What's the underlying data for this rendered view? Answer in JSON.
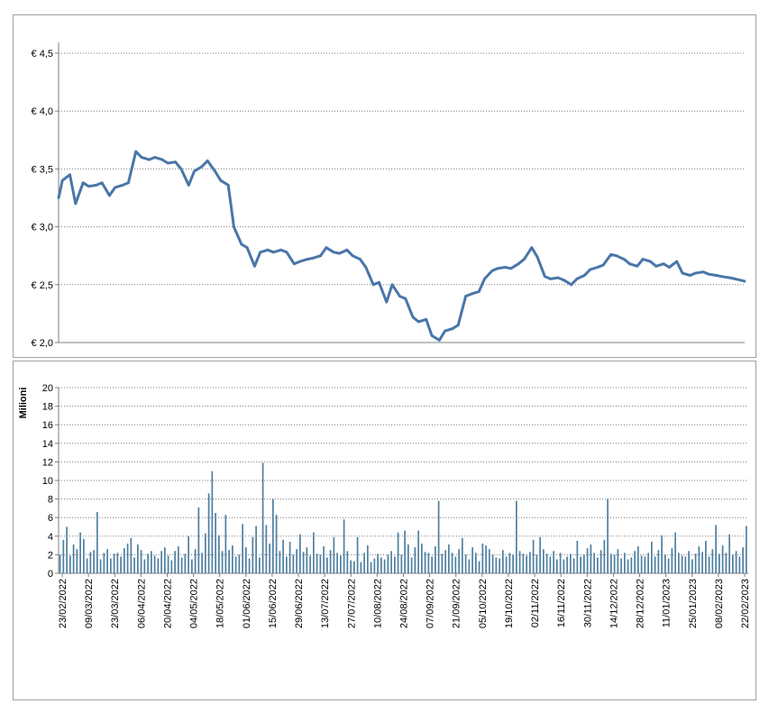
{
  "colors": {
    "line": "#4a76a8",
    "bar": "#4e7fa0",
    "grid": "#7f7f7f",
    "axis": "#7f7f7f"
  },
  "chart_data": [
    {
      "type": "line",
      "title": "",
      "ylim": [
        2.0,
        4.5
      ],
      "yticks": [
        2.0,
        2.5,
        3.0,
        3.5,
        4.0,
        4.5
      ],
      "ytick_labels": [
        "€ 2,0",
        "€ 2,5",
        "€ 3,0",
        "€ 3,5",
        "€ 4,0",
        "€ 4,5"
      ],
      "grid": true,
      "x_start": "2022-02-23",
      "x_end": "2023-02-22",
      "series": [
        {
          "x": [
            "2022-02-23",
            "2022-02-25",
            "2022-03-01",
            "2022-03-04",
            "2022-03-08",
            "2022-03-11",
            "2022-03-15",
            "2022-03-18",
            "2022-03-22",
            "2022-03-25",
            "2022-03-29",
            "2022-04-01",
            "2022-04-05",
            "2022-04-08",
            "2022-04-12",
            "2022-04-15",
            "2022-04-19",
            "2022-04-22",
            "2022-04-26",
            "2022-04-29",
            "2022-05-03",
            "2022-05-06",
            "2022-05-10",
            "2022-05-13",
            "2022-05-17",
            "2022-05-20",
            "2022-05-24",
            "2022-05-27",
            "2022-05-31",
            "2022-06-03",
            "2022-06-07",
            "2022-06-10",
            "2022-06-14",
            "2022-06-17",
            "2022-06-21",
            "2022-06-24",
            "2022-06-28",
            "2022-07-01",
            "2022-07-05",
            "2022-07-08",
            "2022-07-12",
            "2022-07-15",
            "2022-07-19",
            "2022-07-22",
            "2022-07-26",
            "2022-07-29",
            "2022-08-02",
            "2022-08-05",
            "2022-08-09",
            "2022-08-12",
            "2022-08-16",
            "2022-08-19",
            "2022-08-23",
            "2022-08-26",
            "2022-08-30",
            "2022-09-02",
            "2022-09-06",
            "2022-09-09",
            "2022-09-13",
            "2022-09-16",
            "2022-09-20",
            "2022-09-23",
            "2022-09-27",
            "2022-09-30",
            "2022-10-04",
            "2022-10-07",
            "2022-10-11",
            "2022-10-14",
            "2022-10-18",
            "2022-10-21",
            "2022-10-25",
            "2022-10-28",
            "2022-11-01",
            "2022-11-04",
            "2022-11-08",
            "2022-11-11",
            "2022-11-15",
            "2022-11-18",
            "2022-11-22",
            "2022-11-25",
            "2022-11-29",
            "2022-12-02",
            "2022-12-06",
            "2022-12-09",
            "2022-12-13",
            "2022-12-16",
            "2022-12-20",
            "2022-12-23",
            "2022-12-27",
            "2022-12-30",
            "2023-01-03",
            "2023-01-06",
            "2023-01-10",
            "2023-01-13",
            "2023-01-17",
            "2023-01-20",
            "2023-01-24",
            "2023-01-27",
            "2023-01-31",
            "2023-02-03",
            "2023-02-07",
            "2023-02-10",
            "2023-02-14",
            "2023-02-17",
            "2023-02-22"
          ],
          "y": [
            3.25,
            3.4,
            3.45,
            3.2,
            3.38,
            3.35,
            3.36,
            3.38,
            3.27,
            3.34,
            3.36,
            3.38,
            3.65,
            3.6,
            3.58,
            3.6,
            3.58,
            3.55,
            3.56,
            3.5,
            3.36,
            3.48,
            3.52,
            3.57,
            3.48,
            3.4,
            3.36,
            3.0,
            2.85,
            2.82,
            2.66,
            2.78,
            2.8,
            2.78,
            2.8,
            2.78,
            2.68,
            2.7,
            2.72,
            2.73,
            2.75,
            2.82,
            2.78,
            2.77,
            2.8,
            2.75,
            2.72,
            2.65,
            2.5,
            2.52,
            2.35,
            2.5,
            2.4,
            2.38,
            2.22,
            2.18,
            2.2,
            2.06,
            2.02,
            2.1,
            2.12,
            2.15,
            2.4,
            2.42,
            2.44,
            2.55,
            2.62,
            2.64,
            2.65,
            2.64,
            2.68,
            2.72,
            2.82,
            2.74,
            2.57,
            2.55,
            2.56,
            2.54,
            2.5,
            2.55,
            2.58,
            2.63,
            2.65,
            2.67,
            2.76,
            2.75,
            2.72,
            2.68,
            2.66,
            2.72,
            2.7,
            2.66,
            2.68,
            2.65,
            2.7,
            2.6,
            2.58,
            2.6,
            2.61,
            2.59,
            2.58,
            2.57,
            2.56,
            2.55,
            2.53
          ]
        }
      ]
    },
    {
      "type": "bar",
      "title": "",
      "ylabel": "Milioni",
      "ylim": [
        0,
        20
      ],
      "yticks": [
        0,
        2,
        4,
        6,
        8,
        10,
        12,
        14,
        16,
        18,
        20
      ],
      "grid": true,
      "x_start": "2022-02-23",
      "x_end": "2023-02-22",
      "xtick_labels": [
        "23/02/2022",
        "09/03/2022",
        "23/03/2022",
        "06/04/2022",
        "20/04/2022",
        "04/05/2022",
        "18/05/2022",
        "01/06/2022",
        "15/06/2022",
        "29/06/2022",
        "13/07/2022",
        "27/07/2022",
        "10/08/2022",
        "24/08/2022",
        "07/09/2022",
        "21/09/2022",
        "05/10/2022",
        "19/10/2022",
        "02/11/2022",
        "16/11/2022",
        "30/11/2022",
        "14/12/2022",
        "28/12/2022",
        "11/01/2023",
        "25/01/2023",
        "08/02/2023",
        "22/02/2023"
      ],
      "series": [
        {
          "values": [
            2.0,
            3.6,
            5.0,
            1.9,
            3.1,
            2.6,
            4.4,
            3.7,
            1.6,
            2.3,
            2.5,
            6.6,
            1.5,
            2.2,
            2.6,
            1.6,
            2.1,
            2.2,
            1.8,
            2.7,
            3.2,
            3.8,
            1.7,
            3.1,
            2.5,
            1.5,
            2.1,
            2.4,
            1.9,
            1.6,
            2.4,
            2.8,
            1.9,
            1.4,
            2.4,
            2.9,
            1.7,
            2.1,
            4.0,
            1.5,
            2.6,
            7.1,
            2.2,
            4.3,
            8.6,
            11.0,
            6.5,
            4.1,
            2.4,
            6.3,
            2.5,
            3.0,
            1.8,
            2.0,
            5.3,
            2.8,
            1.6,
            3.9,
            5.1,
            1.7,
            11.9,
            5.2,
            3.2,
            8.0,
            6.3,
            2.4,
            3.6,
            1.8,
            3.4,
            2.0,
            2.6,
            4.2,
            2.3,
            2.8,
            1.9,
            4.4,
            2.1,
            2.0,
            2.9,
            1.7,
            2.5,
            3.9,
            2.2,
            1.9,
            5.8,
            2.4,
            1.4,
            1.3,
            3.9,
            1.2,
            2.2,
            3.0,
            1.2,
            1.6,
            2.1,
            1.7,
            1.5,
            2.0,
            2.4,
            1.8,
            4.4,
            2.0,
            4.6,
            3.1,
            1.7,
            2.8,
            4.6,
            3.2,
            2.3,
            2.2,
            1.8,
            2.9,
            7.8,
            2.1,
            2.5,
            3.1,
            2.2,
            1.8,
            2.6,
            3.8,
            2.0,
            1.5,
            2.8,
            2.2,
            1.3,
            3.2,
            3.0,
            2.6,
            2.0,
            1.7,
            1.6,
            2.5,
            1.8,
            2.2,
            2.0,
            7.8,
            2.4,
            2.1,
            1.9,
            2.3,
            3.6,
            2.0,
            3.9,
            2.6,
            2.1,
            1.8,
            2.4,
            1.5,
            2.2,
            1.5,
            1.8,
            2.1,
            1.6,
            3.5,
            1.8,
            2.0,
            2.7,
            3.1,
            2.2,
            1.7,
            2.5,
            3.6,
            8.0,
            2.1,
            2.0,
            2.6,
            1.6,
            2.2,
            1.5,
            1.7,
            2.4,
            2.9,
            1.9,
            1.8,
            2.2,
            3.4,
            1.8,
            2.5,
            4.1,
            2.0,
            1.6,
            2.7,
            4.4,
            2.2,
            1.9,
            1.8,
            2.4,
            1.5,
            2.1,
            2.9,
            2.3,
            3.5,
            1.8,
            2.6,
            5.2,
            2.1,
            3.0,
            2.2,
            4.2,
            2.0,
            2.4,
            1.8,
            2.8,
            5.1
          ]
        }
      ]
    }
  ]
}
